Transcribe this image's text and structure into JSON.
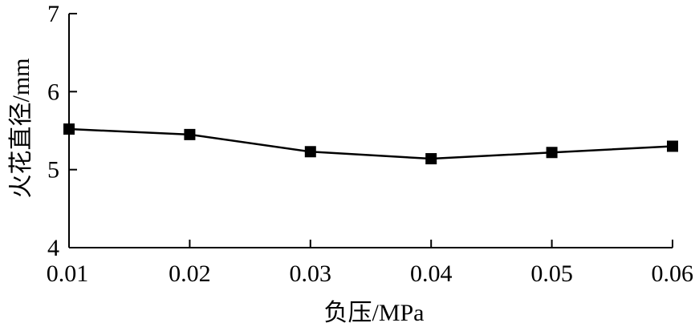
{
  "chart_data": {
    "type": "line",
    "title": "",
    "xlabel": "负压/MPa",
    "ylabel": "火花直径/mm",
    "x": [
      0.01,
      0.02,
      0.03,
      0.04,
      0.05,
      0.06
    ],
    "x_tick_labels": [
      "0.01",
      "0.02",
      "0.03",
      "0.04",
      "0.05",
      "0.06"
    ],
    "xlim": [
      0.01,
      0.06
    ],
    "y_ticks": [
      4,
      5,
      6,
      7
    ],
    "y_tick_labels": [
      "4",
      "5",
      "6",
      "7"
    ],
    "ylim": [
      4,
      7
    ],
    "series": [
      {
        "values": [
          5.52,
          5.45,
          5.23,
          5.14,
          5.22,
          5.3
        ]
      }
    ],
    "grid": false,
    "legend": "none",
    "marker": "square",
    "color": "#000000"
  }
}
